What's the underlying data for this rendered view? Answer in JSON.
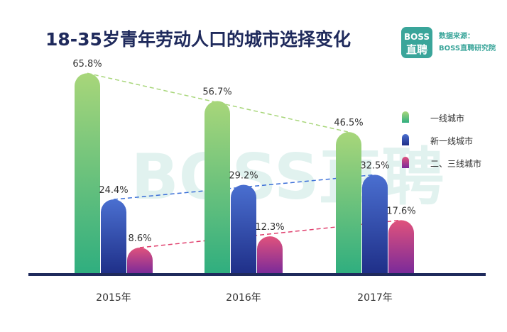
{
  "chart_data": {
    "type": "bar",
    "title": "18-35岁青年劳动人口的城市选择变化",
    "categories": [
      "2015年",
      "2016年",
      "2017年"
    ],
    "series": [
      {
        "name": "一线城市",
        "values": [
          65.8,
          56.7,
          46.5
        ],
        "labels": [
          "65.8%",
          "56.7%",
          "46.5%"
        ],
        "color_top": "#a8d67a",
        "color_bottom": "#2fae7f"
      },
      {
        "name": "新一线城市",
        "values": [
          24.4,
          29.2,
          32.5
        ],
        "labels": [
          "24.4%",
          "29.2%",
          "32.5%"
        ],
        "color_top": "#4a6fd0",
        "color_bottom": "#1f2f88"
      },
      {
        "name": "二、三线城市",
        "values": [
          8.6,
          12.3,
          17.6
        ],
        "labels": [
          "8.6%",
          "12.3%",
          "17.6%"
        ],
        "color_top": "#e0527c",
        "color_bottom": "#7a2a9a"
      }
    ],
    "trend_line_colors": [
      "#a8d67a",
      "#3b6fd8",
      "#e0406e"
    ],
    "ylim": [
      0,
      70
    ],
    "grid": false,
    "legend_position": "right",
    "xlabel": "",
    "ylabel": ""
  },
  "logo": {
    "line1": "BOSS",
    "line2": "直聘",
    "bg_color": "#3aa59a"
  },
  "source": {
    "line1": "数据来源：",
    "line2": "BOSS直聘研究院"
  },
  "watermark": "BOSS直聘",
  "axis_color": "#1f2a5c"
}
